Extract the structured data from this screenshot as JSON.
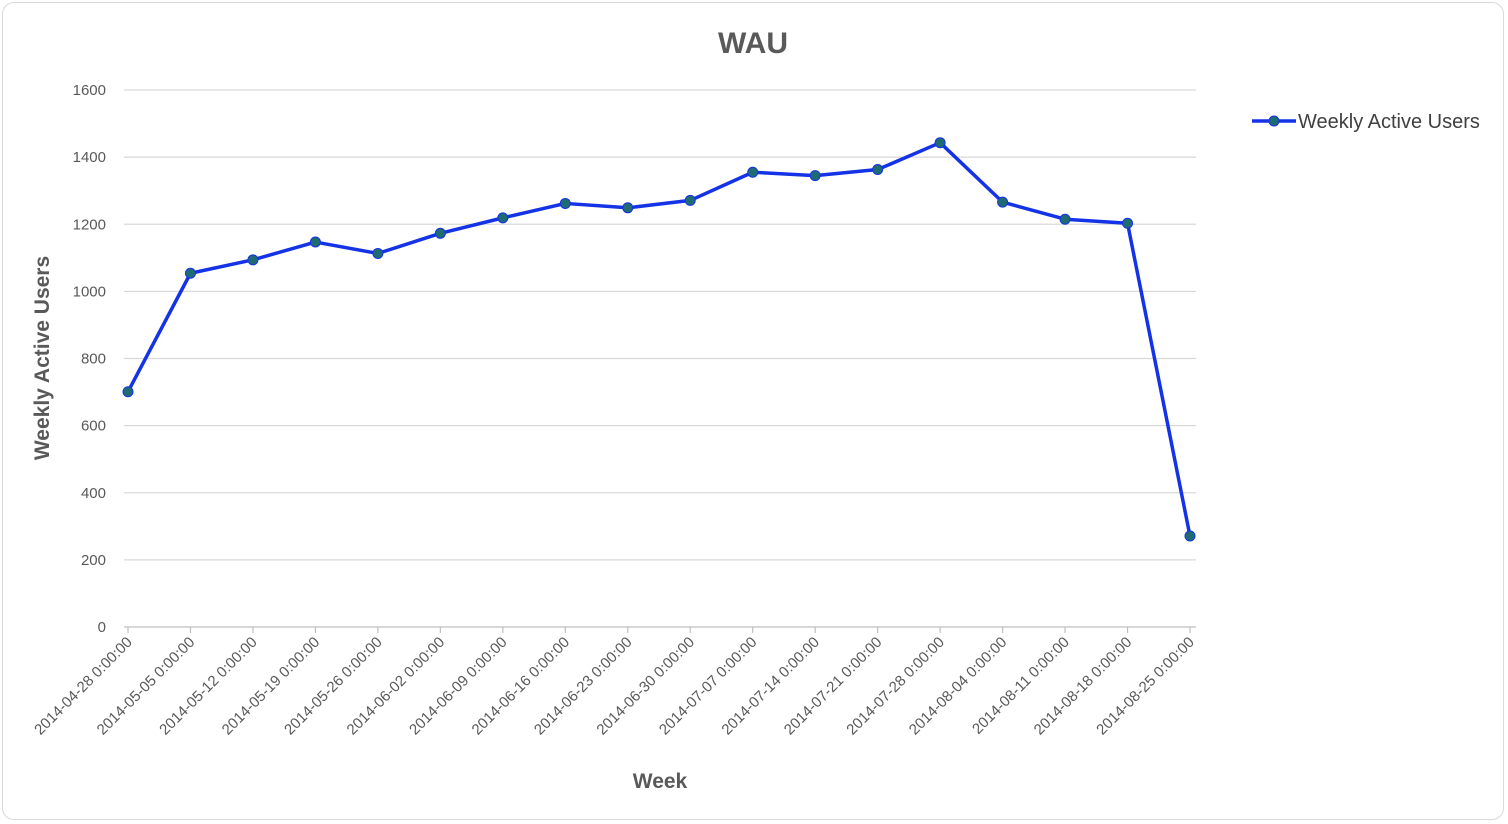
{
  "chart_data": {
    "type": "line",
    "title": "WAU",
    "xlabel": "Week",
    "ylabel": "Weekly Active Users",
    "ylim": [
      0,
      1600
    ],
    "yticks": [
      0,
      200,
      400,
      600,
      800,
      1000,
      1200,
      1400,
      1600
    ],
    "grid": true,
    "legend_position": "right",
    "categories": [
      "2014-04-28 0:00:00",
      "2014-05-05 0:00:00",
      "2014-05-12 0:00:00",
      "2014-05-19 0:00:00",
      "2014-05-26 0:00:00",
      "2014-06-02 0:00:00",
      "2014-06-09 0:00:00",
      "2014-06-16 0:00:00",
      "2014-06-23 0:00:00",
      "2014-06-30 0:00:00",
      "2014-07-07 0:00:00",
      "2014-07-14 0:00:00",
      "2014-07-21 0:00:00",
      "2014-07-28 0:00:00",
      "2014-08-04 0:00:00",
      "2014-08-11 0:00:00",
      "2014-08-18 0:00:00",
      "2014-08-25 0:00:00"
    ],
    "series": [
      {
        "name": "Weekly Active Users",
        "color": "#1433e6",
        "marker_color": "#1f6b73",
        "values": [
          701,
          1054,
          1094,
          1147,
          1113,
          1173,
          1219,
          1262,
          1249,
          1271,
          1355,
          1345,
          1363,
          1443,
          1266,
          1215,
          1203,
          271
        ]
      }
    ]
  }
}
